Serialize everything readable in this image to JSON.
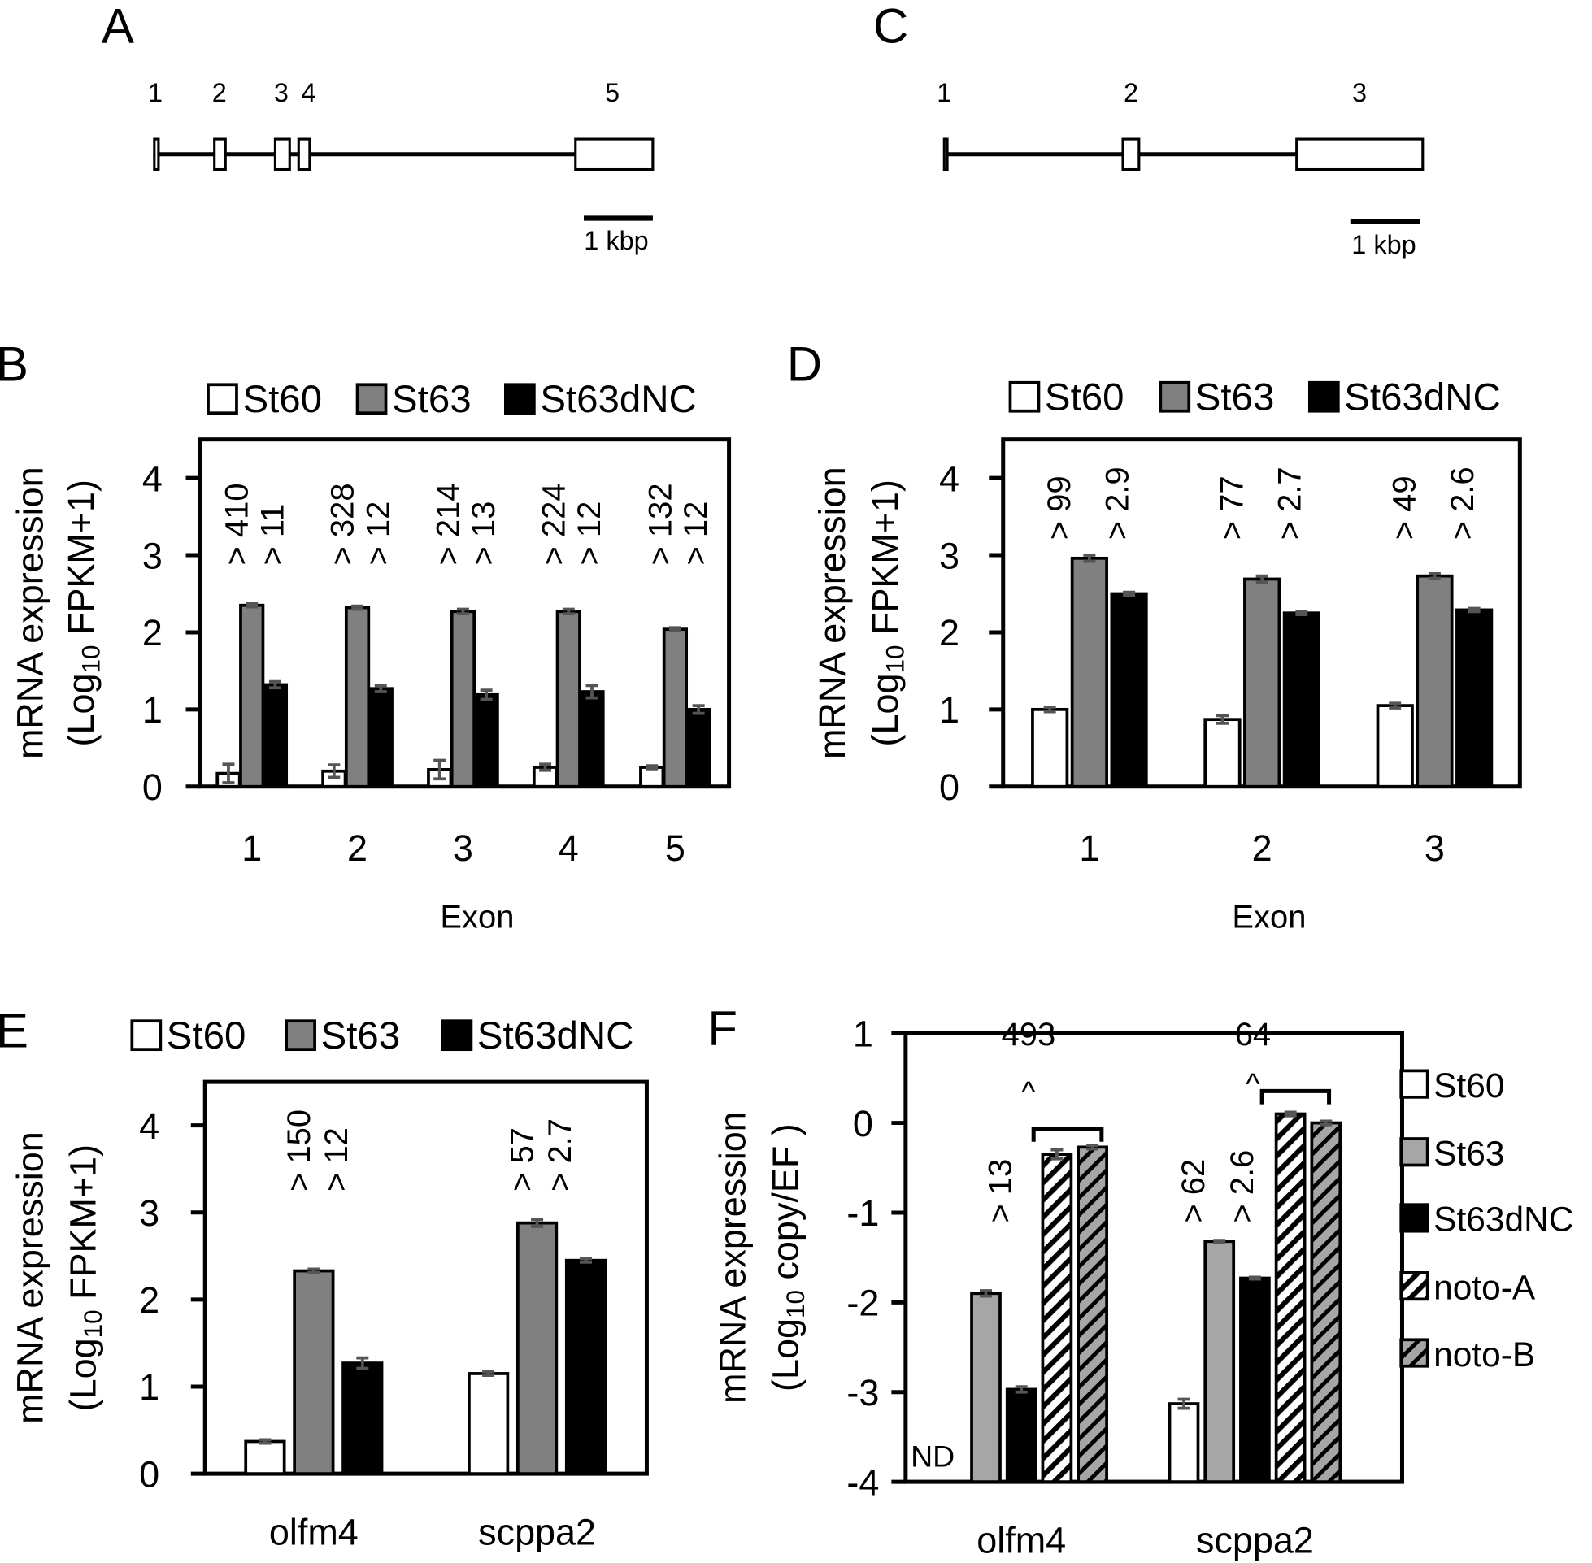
{
  "panel_labels": {
    "A": "A",
    "B": "B",
    "C": "C",
    "D": "D",
    "E": "E",
    "F": "F"
  },
  "gene_structures": [
    {
      "panel": "A",
      "exon_labels": [
        "1",
        "2",
        "3",
        "4",
        "5"
      ],
      "exons_kbp": [
        [
          0,
          0.06
        ],
        [
          0.87,
          1.03
        ],
        [
          1.75,
          1.96
        ],
        [
          2.09,
          2.25
        ],
        [
          6.1,
          7.22
        ]
      ],
      "length_kbp": 7.22,
      "scale_bar": "1 kbp"
    },
    {
      "panel": "C",
      "exon_labels": [
        "1",
        "2",
        "3"
      ],
      "exons_kbp": [
        [
          0,
          0.04
        ],
        [
          2.55,
          2.78
        ],
        [
          5.03,
          6.83
        ]
      ],
      "length_kbp": 6.83,
      "scale_bar": "1 kbp"
    }
  ],
  "chart_data": [
    {
      "panel": "B",
      "type": "bar",
      "xlabel": "Exon",
      "ylabel": "mRNA expression",
      "ylabel2": "(Log10 FPKM+1)",
      "ylim": [
        0,
        4.5
      ],
      "yticks": [
        0,
        1,
        2,
        3,
        4
      ],
      "categories": [
        "1",
        "2",
        "3",
        "4",
        "5"
      ],
      "legend": "top",
      "series": [
        {
          "name": "St60",
          "color": "#ffffff",
          "values": [
            0.17,
            0.2,
            0.22,
            0.25,
            0.25
          ],
          "errors": [
            0.12,
            0.08,
            0.12,
            0.04,
            0.02
          ]
        },
        {
          "name": "St63",
          "color": "#808080",
          "values": [
            2.35,
            2.32,
            2.27,
            2.27,
            2.04
          ],
          "errors": [
            0.02,
            0.02,
            0.03,
            0.03,
            0.02
          ]
        },
        {
          "name": "St63dNC",
          "color": "#000000",
          "values": [
            1.32,
            1.27,
            1.19,
            1.23,
            1.0
          ],
          "errors": [
            0.04,
            0.04,
            0.06,
            0.08,
            0.05
          ]
        }
      ],
      "annotations": [
        [
          "> 410",
          "> 11"
        ],
        [
          "> 328",
          "> 12"
        ],
        [
          "> 214",
          "> 13"
        ],
        [
          "> 224",
          "> 12"
        ],
        [
          "> 132",
          "> 12"
        ]
      ]
    },
    {
      "panel": "D",
      "type": "bar",
      "xlabel": "Exon",
      "ylabel": "mRNA expression",
      "ylabel2": "(Log10 FPKM+1)",
      "ylim": [
        0,
        4.5
      ],
      "yticks": [
        0,
        1,
        2,
        3,
        4
      ],
      "categories": [
        "1",
        "2",
        "3"
      ],
      "legend": "top",
      "series": [
        {
          "name": "St60",
          "color": "#ffffff",
          "values": [
            1.0,
            0.87,
            1.05
          ],
          "errors": [
            0.03,
            0.05,
            0.03
          ]
        },
        {
          "name": "St63",
          "color": "#808080",
          "values": [
            2.96,
            2.69,
            2.73
          ],
          "errors": [
            0.04,
            0.04,
            0.03
          ]
        },
        {
          "name": "St63dNC",
          "color": "#000000",
          "values": [
            2.5,
            2.25,
            2.29
          ],
          "errors": [
            0.02,
            0.02,
            0.02
          ]
        }
      ],
      "annotations": [
        [
          "> 99",
          "> 2.9"
        ],
        [
          "> 77",
          "> 2.7"
        ],
        [
          "> 49",
          "> 2.6"
        ]
      ]
    },
    {
      "panel": "E",
      "type": "bar",
      "xlabel": "",
      "ylabel": "mRNA expression",
      "ylabel2": "(Log10 FPKM+1)",
      "ylim": [
        0,
        4.5
      ],
      "yticks": [
        0,
        1,
        2,
        3,
        4
      ],
      "categories": [
        "olfm4",
        "scppa2"
      ],
      "legend": "top",
      "series": [
        {
          "name": "St60",
          "color": "#ffffff",
          "values": [
            0.37,
            1.15
          ],
          "errors": [
            0.02,
            0.02
          ]
        },
        {
          "name": "St63",
          "color": "#808080",
          "values": [
            2.33,
            2.88
          ],
          "errors": [
            0.02,
            0.04
          ]
        },
        {
          "name": "St63dNC",
          "color": "#000000",
          "values": [
            1.27,
            2.45
          ],
          "errors": [
            0.06,
            0.02
          ]
        }
      ],
      "annotations": [
        [
          "> 150",
          "> 12"
        ],
        [
          "> 57",
          "> 2.7"
        ]
      ]
    },
    {
      "panel": "F",
      "type": "bar",
      "xlabel": "",
      "ylabel": "mRNA expression",
      "ylabel2": "(Log10 copy/EF )",
      "ylim": [
        -4,
        1
      ],
      "yticks": [
        1,
        0,
        -1,
        -2,
        -3,
        -4
      ],
      "categories": [
        "olfm4",
        "scppa2"
      ],
      "legend": "right",
      "series": [
        {
          "name": "St60",
          "color": "#ffffff",
          "values": [
            null,
            -3.13
          ],
          "errors": [
            0,
            0.05
          ]
        },
        {
          "name": "St63",
          "color": "#a6a6a6",
          "values": [
            -1.9,
            -1.32
          ],
          "errors": [
            0.03,
            0.01
          ]
        },
        {
          "name": "St63dNC",
          "color": "#000000",
          "values": [
            -2.97,
            -1.73
          ],
          "errors": [
            0.03,
            0.01
          ]
        },
        {
          "name": "noto-A",
          "color": "#ffffff",
          "pattern": "hatch",
          "values": [
            -0.35,
            0.1
          ],
          "errors": [
            0.05,
            0.02
          ]
        },
        {
          "name": "noto-B",
          "color": "#a6a6a6",
          "pattern": "hatch",
          "values": [
            -0.27,
            0.0
          ],
          "errors": [
            0.02,
            0.02
          ]
        }
      ],
      "not_detected_label": "ND",
      "annotations": [
        [
          "> 13"
        ],
        [
          "> 62",
          "> 2.6"
        ]
      ],
      "bracket_annotations": [
        {
          "caret": "^",
          "text": "493"
        },
        {
          "caret": "^",
          "text": "64"
        }
      ]
    }
  ]
}
